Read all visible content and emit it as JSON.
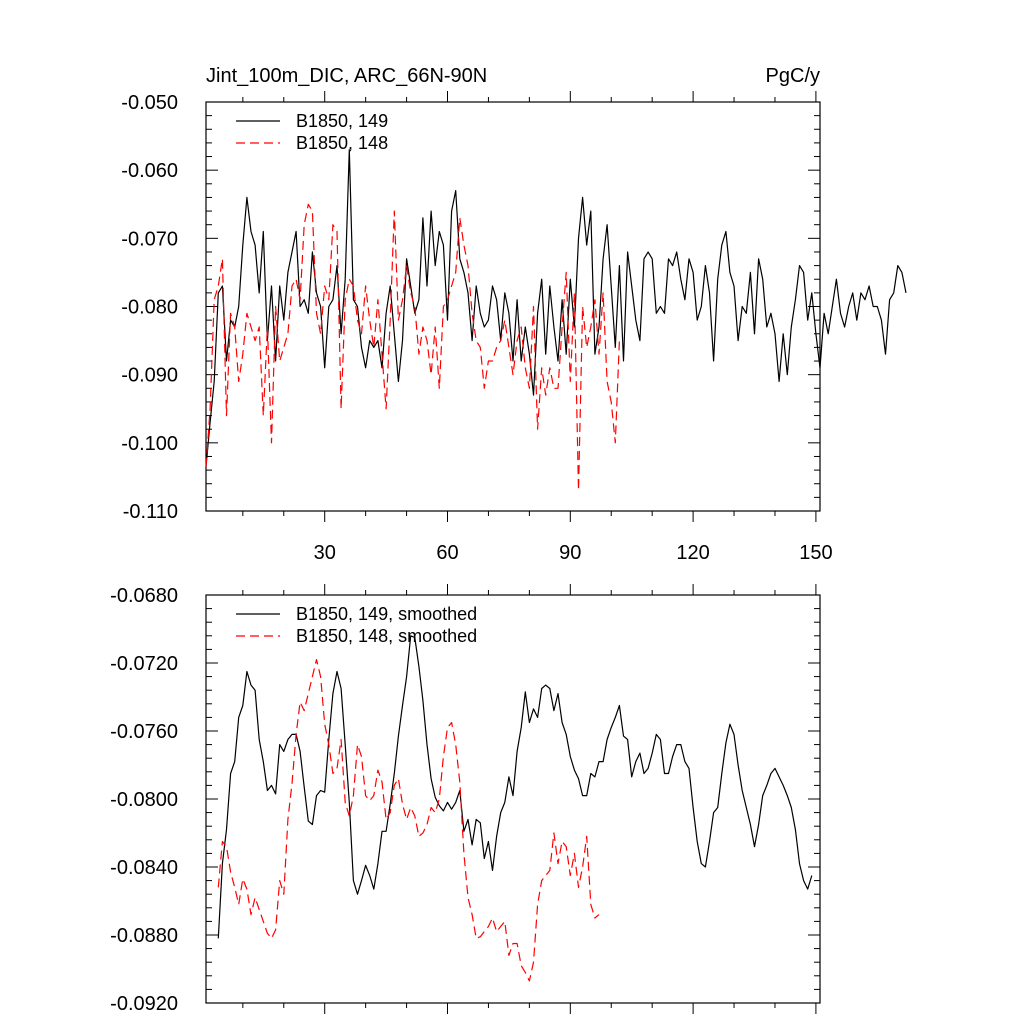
{
  "chart_data": [
    {
      "type": "line",
      "title_left": "Jint_100m_DIC, ARC_66N-90N",
      "title_right": "PgC/y",
      "xlabel": "",
      "ylabel": "",
      "xlim": [
        1,
        151
      ],
      "ylim": [
        -0.11,
        -0.05
      ],
      "yticks": [
        -0.11,
        -0.1,
        -0.09,
        -0.08,
        -0.07,
        -0.06,
        -0.05
      ],
      "ytick_labels": [
        "-0.110",
        "-0.100",
        "-0.090",
        "-0.080",
        "-0.070",
        "-0.060",
        "-0.050"
      ],
      "xticks": [
        30,
        60,
        90,
        120,
        150
      ],
      "xtick_labels": [
        "30",
        "60",
        "90",
        "120",
        "150"
      ],
      "grid": false,
      "legend_position": "top-left",
      "series": [
        {
          "name": "B1850, 149",
          "color": "#000000",
          "dash": "solid",
          "x_start": 1,
          "values": [
            -0.1035,
            -0.097,
            -0.091,
            -0.078,
            -0.077,
            -0.088,
            -0.082,
            -0.083,
            -0.08,
            -0.071,
            -0.064,
            -0.069,
            -0.071,
            -0.078,
            -0.069,
            -0.085,
            -0.077,
            -0.088,
            -0.077,
            -0.082,
            -0.075,
            -0.072,
            -0.069,
            -0.08,
            -0.079,
            -0.081,
            -0.072,
            -0.078,
            -0.08,
            -0.089,
            -0.08,
            -0.079,
            -0.074,
            -0.084,
            -0.076,
            -0.057,
            -0.079,
            -0.08,
            -0.086,
            -0.089,
            -0.085,
            -0.086,
            -0.085,
            -0.089,
            -0.081,
            -0.077,
            -0.084,
            -0.091,
            -0.085,
            -0.073,
            -0.077,
            -0.081,
            -0.079,
            -0.067,
            -0.077,
            -0.066,
            -0.074,
            -0.069,
            -0.071,
            -0.082,
            -0.066,
            -0.063,
            -0.073,
            -0.075,
            -0.078,
            -0.085,
            -0.077,
            -0.081,
            -0.083,
            -0.082,
            -0.077,
            -0.079,
            -0.085,
            -0.078,
            -0.081,
            -0.088,
            -0.079,
            -0.088,
            -0.083,
            -0.087,
            -0.093,
            -0.081,
            -0.076,
            -0.087,
            -0.077,
            -0.083,
            -0.088,
            -0.079,
            -0.087,
            -0.076,
            -0.083,
            -0.07,
            -0.064,
            -0.071,
            -0.066,
            -0.087,
            -0.083,
            -0.073,
            -0.068,
            -0.077,
            -0.086,
            -0.074,
            -0.088,
            -0.072,
            -0.077,
            -0.082,
            -0.085,
            -0.073,
            -0.072,
            -0.073,
            -0.081,
            -0.08,
            -0.081,
            -0.073,
            -0.074,
            -0.072,
            -0.076,
            -0.079,
            -0.073,
            -0.075,
            -0.082,
            -0.08,
            -0.074,
            -0.078,
            -0.088,
            -0.076,
            -0.071,
            -0.069,
            -0.075,
            -0.077,
            -0.085,
            -0.08,
            -0.081,
            -0.075,
            -0.084,
            -0.073,
            -0.076,
            -0.083,
            -0.081,
            -0.084,
            -0.091,
            -0.084,
            -0.09,
            -0.083,
            -0.079,
            -0.074,
            -0.075,
            -0.082,
            -0.078,
            -0.084,
            -0.089,
            -0.081,
            -0.084,
            -0.08,
            -0.076,
            -0.081,
            -0.083,
            -0.08,
            -0.078,
            -0.082,
            -0.078,
            -0.079,
            -0.077,
            -0.08,
            -0.08,
            -0.082,
            -0.087,
            -0.079,
            -0.078,
            -0.074,
            -0.075,
            -0.078
          ]
        },
        {
          "name": "B1850, 148",
          "color": "#ff0000",
          "dash": "dashed",
          "x_start": 1,
          "values": [
            -0.1035,
            -0.095,
            -0.079,
            -0.077,
            -0.073,
            -0.096,
            -0.081,
            -0.083,
            -0.091,
            -0.087,
            -0.081,
            -0.083,
            -0.085,
            -0.083,
            -0.096,
            -0.083,
            -0.1,
            -0.08,
            -0.088,
            -0.086,
            -0.084,
            -0.077,
            -0.076,
            -0.079,
            -0.068,
            -0.065,
            -0.066,
            -0.081,
            -0.084,
            -0.077,
            -0.079,
            -0.068,
            -0.069,
            -0.095,
            -0.079,
            -0.076,
            -0.077,
            -0.082,
            -0.084,
            -0.077,
            -0.082,
            -0.086,
            -0.079,
            -0.087,
            -0.095,
            -0.082,
            -0.066,
            -0.082,
            -0.079,
            -0.074,
            -0.078,
            -0.08,
            -0.087,
            -0.083,
            -0.085,
            -0.09,
            -0.083,
            -0.092,
            -0.08,
            -0.079,
            -0.077,
            -0.075,
            -0.067,
            -0.071,
            -0.074,
            -0.081,
            -0.085,
            -0.086,
            -0.092,
            -0.088,
            -0.088,
            -0.086,
            -0.085,
            -0.082,
            -0.086,
            -0.09,
            -0.085,
            -0.083,
            -0.089,
            -0.092,
            -0.08,
            -0.098,
            -0.089,
            -0.093,
            -0.089,
            -0.092,
            -0.092,
            -0.083,
            -0.075,
            -0.091,
            -0.078,
            -0.107,
            -0.08,
            -0.086,
            -0.083,
            -0.079,
            -0.087,
            -0.078,
            -0.091,
            -0.094,
            -0.1,
            -0.085
          ]
        }
      ],
      "legend": [
        {
          "label": "B1850, 149",
          "color": "#000000",
          "dash": "solid"
        },
        {
          "label": "B1850, 148",
          "color": "#ff0000",
          "dash": "dashed"
        }
      ]
    },
    {
      "type": "line",
      "title_left": "",
      "title_right": "",
      "xlabel": "",
      "ylabel": "",
      "xlim": [
        1,
        151
      ],
      "ylim": [
        -0.092,
        -0.068
      ],
      "yticks": [
        -0.092,
        -0.088,
        -0.084,
        -0.08,
        -0.076,
        -0.072,
        -0.068
      ],
      "ytick_labels": [
        "-0.0920",
        "-0.0880",
        "-0.0840",
        "-0.0800",
        "-0.0760",
        "-0.0720",
        "-0.0680"
      ],
      "xticks": [
        30,
        60,
        90,
        120,
        150
      ],
      "xtick_labels": [],
      "grid": false,
      "legend_position": "top-left",
      "series": [
        {
          "name": "B1850, 149, smoothed",
          "color": "#000000",
          "dash": "solid",
          "x_start": 4,
          "values": [
            -0.0882,
            -0.0838,
            -0.0818,
            -0.0785,
            -0.0778,
            -0.0752,
            -0.0745,
            -0.0725,
            -0.0733,
            -0.0736,
            -0.0765,
            -0.0778,
            -0.0795,
            -0.0792,
            -0.0797,
            -0.0768,
            -0.0772,
            -0.0765,
            -0.0762,
            -0.0762,
            -0.0772,
            -0.0793,
            -0.0813,
            -0.0815,
            -0.0798,
            -0.0795,
            -0.0796,
            -0.0765,
            -0.0738,
            -0.0725,
            -0.0735,
            -0.0768,
            -0.0802,
            -0.0848,
            -0.0856,
            -0.0848,
            -0.0839,
            -0.0845,
            -0.0853,
            -0.0838,
            -0.0819,
            -0.0819,
            -0.0803,
            -0.0785,
            -0.0763,
            -0.0745,
            -0.0728,
            -0.0704,
            -0.0705,
            -0.0722,
            -0.0742,
            -0.0768,
            -0.0788,
            -0.0799,
            -0.0804,
            -0.0807,
            -0.0802,
            -0.0806,
            -0.0802,
            -0.0795,
            -0.0819,
            -0.0812,
            -0.0827,
            -0.0812,
            -0.0814,
            -0.0835,
            -0.0825,
            -0.0842,
            -0.0822,
            -0.0808,
            -0.0802,
            -0.0787,
            -0.0798,
            -0.0772,
            -0.0758,
            -0.0737,
            -0.0755,
            -0.0747,
            -0.0752,
            -0.0735,
            -0.0733,
            -0.0735,
            -0.0748,
            -0.0738,
            -0.0755,
            -0.0762,
            -0.0775,
            -0.0783,
            -0.0788,
            -0.0798,
            -0.0798,
            -0.0785,
            -0.0787,
            -0.0778,
            -0.0778,
            -0.0765,
            -0.0758,
            -0.0752,
            -0.0745,
            -0.0763,
            -0.0765,
            -0.0787,
            -0.0778,
            -0.0773,
            -0.0785,
            -0.0782,
            -0.0773,
            -0.0762,
            -0.0765,
            -0.0785,
            -0.0785,
            -0.0775,
            -0.0768,
            -0.0768,
            -0.0778,
            -0.0782,
            -0.0805,
            -0.0825,
            -0.0838,
            -0.084,
            -0.0825,
            -0.0808,
            -0.0805,
            -0.0785,
            -0.0767,
            -0.0756,
            -0.0762,
            -0.078,
            -0.0795,
            -0.0805,
            -0.0815,
            -0.0828,
            -0.0815,
            -0.0798,
            -0.0792,
            -0.0785,
            -0.0782,
            -0.0787,
            -0.0792,
            -0.0798,
            -0.0805,
            -0.0818,
            -0.0838,
            -0.0848,
            -0.0853,
            -0.0845
          ]
        },
        {
          "name": "B1850, 148, smoothed",
          "color": "#ff0000",
          "dash": "dashed",
          "x_start": 4,
          "values": [
            -0.0852,
            -0.0825,
            -0.0828,
            -0.0843,
            -0.0852,
            -0.0862,
            -0.0847,
            -0.0853,
            -0.0868,
            -0.0858,
            -0.0865,
            -0.0872,
            -0.0879,
            -0.0882,
            -0.0877,
            -0.0848,
            -0.0856,
            -0.0812,
            -0.0791,
            -0.0762,
            -0.0743,
            -0.0748,
            -0.0738,
            -0.0728,
            -0.0718,
            -0.0728,
            -0.0756,
            -0.0768,
            -0.0785,
            -0.0782,
            -0.0765,
            -0.0802,
            -0.081,
            -0.0798,
            -0.0768,
            -0.0775,
            -0.0798,
            -0.0801,
            -0.0798,
            -0.0783,
            -0.079,
            -0.0812,
            -0.0808,
            -0.0792,
            -0.0788,
            -0.0803,
            -0.0812,
            -0.0805,
            -0.081,
            -0.0822,
            -0.082,
            -0.0815,
            -0.0805,
            -0.0808,
            -0.08,
            -0.0775,
            -0.0758,
            -0.0755,
            -0.0768,
            -0.079,
            -0.0832,
            -0.0858,
            -0.0868,
            -0.0882,
            -0.0881,
            -0.0878,
            -0.0875,
            -0.087,
            -0.0878,
            -0.0875,
            -0.0872,
            -0.0892,
            -0.0885,
            -0.0885,
            -0.0898,
            -0.0902,
            -0.0907,
            -0.0896,
            -0.0862,
            -0.0848,
            -0.0845,
            -0.0842,
            -0.082,
            -0.0838,
            -0.0825,
            -0.0828,
            -0.0845,
            -0.0832,
            -0.0852,
            -0.084,
            -0.0822,
            -0.0862,
            -0.087,
            -0.0868
          ]
        }
      ],
      "legend": [
        {
          "label": "B1850, 149, smoothed",
          "color": "#000000",
          "dash": "solid"
        },
        {
          "label": "B1850, 148, smoothed",
          "color": "#ff0000",
          "dash": "dashed"
        }
      ]
    }
  ]
}
